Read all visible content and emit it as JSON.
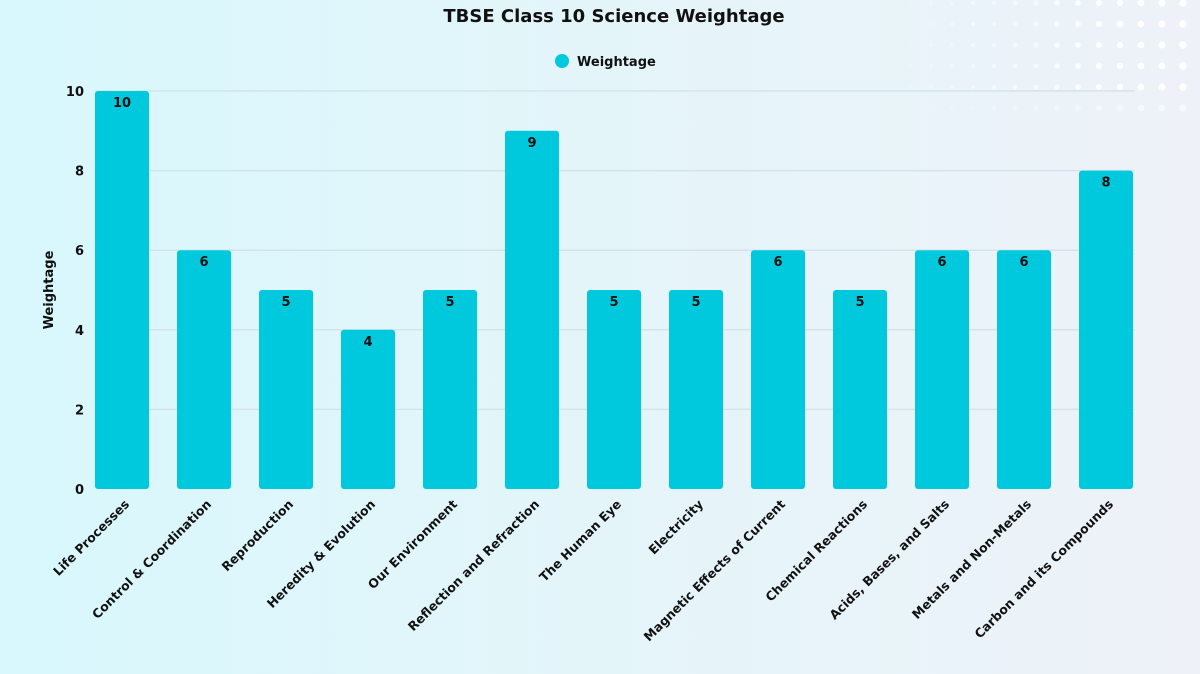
{
  "chart_data": {
    "type": "bar",
    "title": "TBSE Class 10 Science Weightage",
    "xlabel": "",
    "ylabel": "Weightage",
    "ylim": [
      0,
      10
    ],
    "yticks": [
      0,
      2,
      4,
      6,
      8,
      10
    ],
    "grid": true,
    "legend_placement": "top-center",
    "categories": [
      "Life Processes",
      "Control & Coordination",
      "Reproduction",
      "Heredity & Evolution",
      "Our Environment",
      "Reflection and Refraction",
      "The Human Eye",
      "Electricity",
      "Magnetic Effects of Current",
      "Chemical Reactions",
      "Acids, Bases, and Salts",
      "Metals and Non-Metals",
      "Carbon and its Compounds"
    ],
    "series": [
      {
        "name": "Weightage",
        "values": [
          10,
          6,
          5,
          4,
          5,
          9,
          5,
          5,
          6,
          5,
          6,
          6,
          8
        ],
        "color": "#00c8dd"
      }
    ]
  }
}
